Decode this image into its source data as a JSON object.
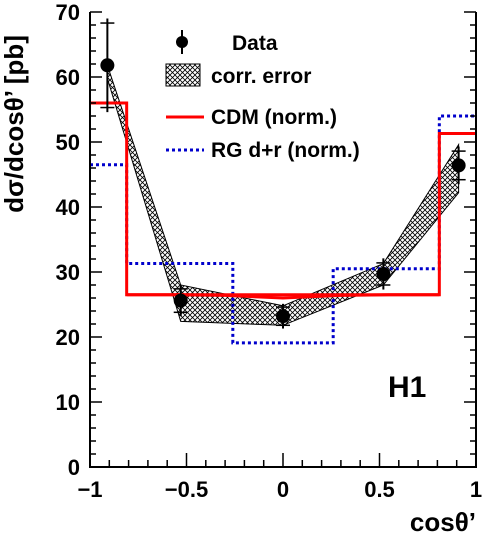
{
  "chart_data": {
    "type": "line",
    "title": "",
    "brand_label": "H1",
    "xlabel": "cosθ’",
    "ylabel": "dσ/dcosθ’ [pb]",
    "xlim": [
      -1,
      1
    ],
    "ylim": [
      0,
      70
    ],
    "x_ticks": [
      -1,
      -0.5,
      0,
      0.5,
      1
    ],
    "x_tick_labels": [
      "−1",
      "−0.5",
      "0",
      "0.5",
      "1"
    ],
    "y_ticks": [
      0,
      10,
      20,
      30,
      40,
      50,
      60,
      70
    ],
    "y_tick_labels": [
      "0",
      "10",
      "20",
      "30",
      "40",
      "50",
      "60",
      "70"
    ],
    "legend_position": "top-right",
    "legend": {
      "data": "Data",
      "corr_error": "corr. error",
      "cdm": "CDM (norm.)",
      "rg": "RG d+r (norm.)"
    },
    "colors": {
      "data": "#000000",
      "band": "#000000",
      "cdm": "#ff0000",
      "rg": "#0000cc"
    },
    "series": [
      {
        "name": "Data",
        "kind": "points",
        "x": [
          -0.91,
          -0.53,
          0.0,
          0.52,
          0.91
        ],
        "y": [
          61.8,
          25.6,
          23.2,
          29.7,
          46.4
        ],
        "y_err_stat": [
          6.5,
          1.8,
          1.4,
          1.7,
          2.2
        ],
        "y_err_tot": [
          7.2,
          2.4,
          1.9,
          2.4,
          2.9
        ]
      },
      {
        "name": "corr. error",
        "kind": "band",
        "x": [
          -0.91,
          -0.53,
          0.0,
          0.52,
          0.91
        ],
        "upper": [
          61.8,
          28.0,
          24.8,
          31.3,
          49.6
        ],
        "lower": [
          59.8,
          22.4,
          21.8,
          28.0,
          42.2
        ]
      },
      {
        "name": "CDM (norm.)",
        "kind": "step",
        "edges": [
          -1,
          -0.81,
          0.81,
          1
        ],
        "values": [
          56.0,
          26.5,
          51.3
        ],
        "middle_profile": {
          "x": [
            -0.81,
            -0.55,
            -0.3,
            0.0,
            0.3,
            0.55,
            0.81
          ],
          "y": [
            26.5,
            26.5,
            26.4,
            26.0,
            26.4,
            26.5,
            26.5
          ]
        }
      },
      {
        "name": "RG d+r (norm.)",
        "kind": "step",
        "edges": [
          -1,
          -0.81,
          -0.26,
          0.26,
          0.81,
          1
        ],
        "values": [
          46.5,
          31.3,
          19.1,
          30.5,
          54.0
        ]
      }
    ]
  }
}
